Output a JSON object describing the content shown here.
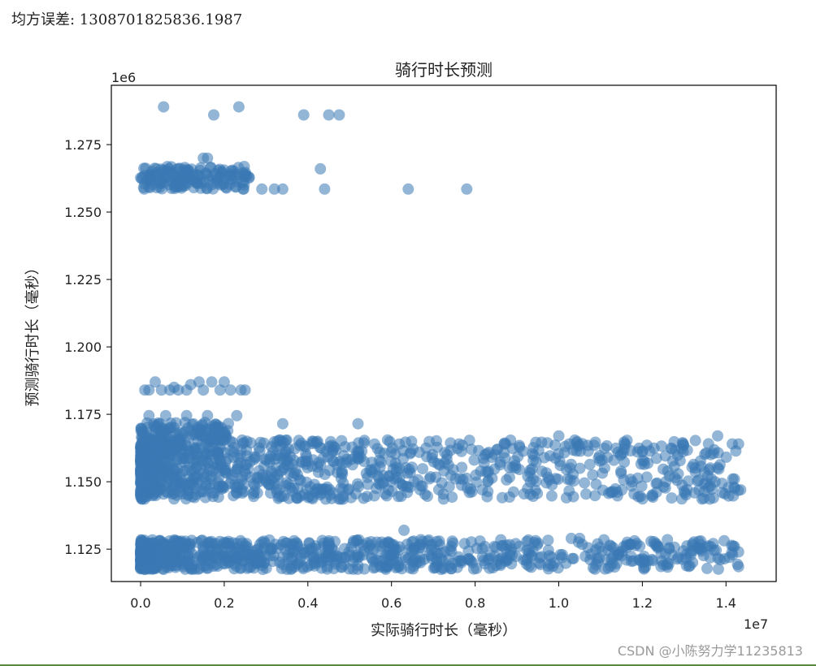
{
  "output_text": {
    "mse_line": "均方误差: 1308701825836.1987"
  },
  "watermark": "CSDN @小陈努力学11235813",
  "colors": {
    "points": "#3a78b5",
    "axis": "#000000",
    "background": "#ffffff"
  },
  "chart_data": {
    "type": "scatter",
    "title": "骑行时长预测",
    "xlabel": "实际骑行时长（毫秒）",
    "ylabel": "预测骑行时长（毫秒）",
    "x_offset_label": "1e7",
    "y_offset_label": "1e6",
    "xlim": [
      -700000,
      15200000
    ],
    "ylim": [
      1113000,
      1297000
    ],
    "x_ticks": [
      0,
      2000000,
      4000000,
      6000000,
      8000000,
      10000000,
      12000000,
      14000000
    ],
    "x_tick_labels": [
      "0.0",
      "0.2",
      "0.4",
      "0.6",
      "0.8",
      "1.0",
      "1.2",
      "1.4"
    ],
    "y_ticks": [
      1125000,
      1150000,
      1175000,
      1200000,
      1225000,
      1250000,
      1275000
    ],
    "y_tick_labels": [
      "1.125",
      "1.150",
      "1.175",
      "1.200",
      "1.225",
      "1.250",
      "1.275"
    ],
    "marker_alpha": 0.55,
    "clusters": [
      {
        "x_range": [
          0,
          14300000
        ],
        "y_range": [
          1117500,
          1128500
        ],
        "n": 900,
        "density": "decreasing"
      },
      {
        "x_range": [
          0,
          14300000
        ],
        "y_range": [
          1143500,
          1165500
        ],
        "n": 1100,
        "density": "decreasing"
      },
      {
        "x_range": [
          0,
          2100000
        ],
        "y_range": [
          1165000,
          1172000
        ],
        "n": 120,
        "density": "uniform"
      },
      {
        "x_range": [
          0,
          2600000
        ],
        "y_range": [
          1258500,
          1267000
        ],
        "n": 160,
        "density": "uniform"
      }
    ],
    "points": [
      {
        "x": 550000,
        "y": 1289000
      },
      {
        "x": 1750000,
        "y": 1286000
      },
      {
        "x": 2350000,
        "y": 1289000
      },
      {
        "x": 3900000,
        "y": 1286000
      },
      {
        "x": 4500000,
        "y": 1286000
      },
      {
        "x": 4750000,
        "y": 1286000
      },
      {
        "x": 4300000,
        "y": 1266000
      },
      {
        "x": 4400000,
        "y": 1258500
      },
      {
        "x": 6400000,
        "y": 1258500
      },
      {
        "x": 7800000,
        "y": 1258500
      },
      {
        "x": 3200000,
        "y": 1258500
      },
      {
        "x": 3400000,
        "y": 1258500
      },
      {
        "x": 2450000,
        "y": 1258500
      },
      {
        "x": 2500000,
        "y": 1264000
      },
      {
        "x": 2900000,
        "y": 1258500
      },
      {
        "x": 1500000,
        "y": 1270000
      },
      {
        "x": 1600000,
        "y": 1270000
      },
      {
        "x": 100000,
        "y": 1184000
      },
      {
        "x": 200000,
        "y": 1184000
      },
      {
        "x": 350000,
        "y": 1187000
      },
      {
        "x": 500000,
        "y": 1184000
      },
      {
        "x": 700000,
        "y": 1184000
      },
      {
        "x": 900000,
        "y": 1184000
      },
      {
        "x": 1100000,
        "y": 1184000
      },
      {
        "x": 1400000,
        "y": 1187000
      },
      {
        "x": 1500000,
        "y": 1184000
      },
      {
        "x": 1700000,
        "y": 1187000
      },
      {
        "x": 1900000,
        "y": 1184000
      },
      {
        "x": 2000000,
        "y": 1187000
      },
      {
        "x": 2150000,
        "y": 1184000
      },
      {
        "x": 2400000,
        "y": 1184000
      },
      {
        "x": 2500000,
        "y": 1184000
      },
      {
        "x": 1200000,
        "y": 1186000
      },
      {
        "x": 800000,
        "y": 1185000
      },
      {
        "x": 200000,
        "y": 1174500
      },
      {
        "x": 600000,
        "y": 1174500
      },
      {
        "x": 1100000,
        "y": 1174500
      },
      {
        "x": 1600000,
        "y": 1174500
      },
      {
        "x": 2300000,
        "y": 1174500
      },
      {
        "x": 3400000,
        "y": 1171500
      },
      {
        "x": 5200000,
        "y": 1171500
      },
      {
        "x": 10000000,
        "y": 1167000
      },
      {
        "x": 13800000,
        "y": 1167000
      },
      {
        "x": 14150000,
        "y": 1164000
      },
      {
        "x": 14300000,
        "y": 1164000
      },
      {
        "x": 13700000,
        "y": 1160500
      },
      {
        "x": 14200000,
        "y": 1151000
      },
      {
        "x": 14350000,
        "y": 1147000
      },
      {
        "x": 12700000,
        "y": 1144000
      },
      {
        "x": 13700000,
        "y": 1144000
      },
      {
        "x": 6300000,
        "y": 1132000
      },
      {
        "x": 6700000,
        "y": 1128500
      },
      {
        "x": 10300000,
        "y": 1129000
      },
      {
        "x": 10500000,
        "y": 1129000
      },
      {
        "x": 12600000,
        "y": 1128500
      },
      {
        "x": 13200000,
        "y": 1127000
      },
      {
        "x": 14200000,
        "y": 1126000
      },
      {
        "x": 14300000,
        "y": 1124000
      },
      {
        "x": 14300000,
        "y": 1118500
      }
    ]
  }
}
